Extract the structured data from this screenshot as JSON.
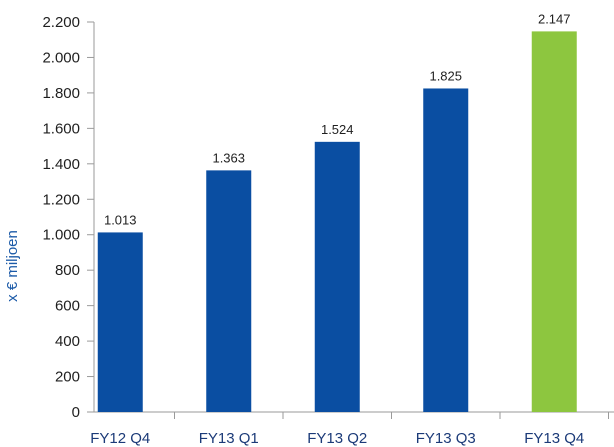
{
  "chart_data": {
    "type": "bar",
    "title": "",
    "xlabel": "",
    "ylabel": "x € miljoen",
    "categories": [
      "FY12 Q4",
      "FY13 Q1",
      "FY13 Q2",
      "FY13 Q3",
      "FY13 Q4"
    ],
    "values": [
      1013,
      1363,
      1524,
      1825,
      2147
    ],
    "value_labels": [
      "1.013",
      "1.363",
      "1.524",
      "1.825",
      "2.147"
    ],
    "ylim": [
      0,
      2200
    ],
    "yticks": [
      0,
      200,
      400,
      600,
      800,
      1000,
      1200,
      1400,
      1600,
      1800,
      2000,
      2200
    ],
    "ytick_labels": [
      "0",
      "200",
      "400",
      "600",
      "800",
      "1.000",
      "1.200",
      "1.400",
      "1.600",
      "1.800",
      "2.000",
      "2.200"
    ],
    "grid": false,
    "legend": "none",
    "colors": {
      "bar": "#0a4ea2",
      "highlight": "#8dc63f",
      "axis": "#9a9a9a"
    },
    "highlight_index": 4
  }
}
